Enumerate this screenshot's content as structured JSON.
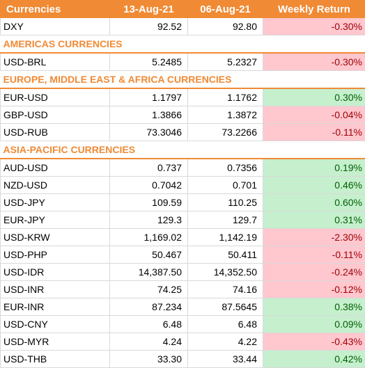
{
  "header": {
    "col1": "Currencies",
    "col2": "13-Aug-21",
    "col3": "06-Aug-21",
    "col4": "Weekly Return"
  },
  "colors": {
    "accent": "#f08a34",
    "negative_fill": "#ffc7ce",
    "negative_text": "#9c0006",
    "positive_fill": "#c6efce",
    "positive_text": "#006100"
  },
  "rows": [
    {
      "type": "data",
      "name": "DXY",
      "current": "92.52",
      "previous": "92.80",
      "ret": "-0.30%",
      "sign": "neg"
    },
    {
      "type": "section",
      "title": "AMERICAS CURRENCIES"
    },
    {
      "type": "data",
      "name": "USD-BRL",
      "current": "5.2485",
      "previous": "5.2327",
      "ret": "-0.30%",
      "sign": "neg"
    },
    {
      "type": "section",
      "title": "EUROPE, MIDDLE EAST & AFRICA CURRENCIES"
    },
    {
      "type": "data",
      "name": "EUR-USD",
      "current": "1.1797",
      "previous": "1.1762",
      "ret": "0.30%",
      "sign": "pos"
    },
    {
      "type": "data",
      "name": "GBP-USD",
      "current": "1.3866",
      "previous": "1.3872",
      "ret": "-0.04%",
      "sign": "neg"
    },
    {
      "type": "data",
      "name": "USD-RUB",
      "current": "73.3046",
      "previous": "73.2266",
      "ret": "-0.11%",
      "sign": "neg"
    },
    {
      "type": "section",
      "title": "ASIA-PACIFIC CURRENCIES"
    },
    {
      "type": "data",
      "name": "AUD-USD",
      "current": "0.737",
      "previous": "0.7356",
      "ret": "0.19%",
      "sign": "pos"
    },
    {
      "type": "data",
      "name": "NZD-USD",
      "current": "0.7042",
      "previous": "0.701",
      "ret": "0.46%",
      "sign": "pos"
    },
    {
      "type": "data",
      "name": "USD-JPY",
      "current": "109.59",
      "previous": "110.25",
      "ret": "0.60%",
      "sign": "pos"
    },
    {
      "type": "data",
      "name": "EUR-JPY",
      "current": "129.3",
      "previous": "129.7",
      "ret": "0.31%",
      "sign": "pos"
    },
    {
      "type": "data",
      "name": "USD-KRW",
      "current": "1,169.02",
      "previous": "1,142.19",
      "ret": "-2.30%",
      "sign": "neg"
    },
    {
      "type": "data",
      "name": "USD-PHP",
      "current": "50.467",
      "previous": "50.411",
      "ret": "-0.11%",
      "sign": "neg"
    },
    {
      "type": "data",
      "name": "USD-IDR",
      "current": "14,387.50",
      "previous": "14,352.50",
      "ret": "-0.24%",
      "sign": "neg"
    },
    {
      "type": "data",
      "name": "USD-INR",
      "current": "74.25",
      "previous": "74.16",
      "ret": "-0.12%",
      "sign": "neg"
    },
    {
      "type": "data",
      "name": "EUR-INR",
      "current": "87.234",
      "previous": "87.5645",
      "ret": "0.38%",
      "sign": "pos"
    },
    {
      "type": "data",
      "name": "USD-CNY",
      "current": "6.48",
      "previous": "6.48",
      "ret": "0.09%",
      "sign": "pos"
    },
    {
      "type": "data",
      "name": "USD-MYR",
      "current": "4.24",
      "previous": "4.22",
      "ret": "-0.43%",
      "sign": "neg"
    },
    {
      "type": "data",
      "name": "USD-THB",
      "current": "33.30",
      "previous": "33.44",
      "ret": "0.42%",
      "sign": "pos"
    }
  ]
}
